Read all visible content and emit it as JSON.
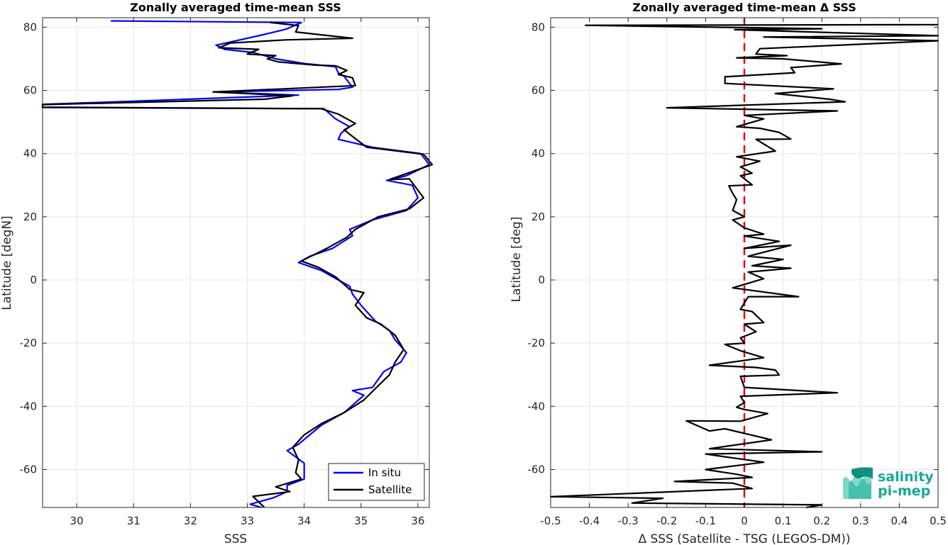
{
  "chart_data": [
    {
      "type": "line",
      "title": "Zonally averaged time-mean SSS",
      "xlabel": "SSS",
      "ylabel": "Latitude [degN]",
      "xlim": [
        29.4,
        36.2
      ],
      "ylim": [
        -72,
        83
      ],
      "xticks": [
        30,
        31,
        32,
        33,
        34,
        35,
        36
      ],
      "yticks": [
        -60,
        -40,
        -20,
        0,
        20,
        40,
        60,
        80
      ],
      "grid": true,
      "legend": "bottom-right",
      "series": [
        {
          "name": "In situ",
          "color": "#0000ff",
          "points": [
            [
              30.6,
              82
            ],
            [
              33.95,
              81.5
            ],
            [
              33.7,
              79.5
            ],
            [
              33.6,
              79
            ],
            [
              33.25,
              77.5
            ],
            [
              32.45,
              74.3
            ],
            [
              32.6,
              73
            ],
            [
              33.1,
              72
            ],
            [
              33.3,
              71
            ],
            [
              33.5,
              70
            ],
            [
              34.0,
              68.5
            ],
            [
              34.55,
              67.5
            ],
            [
              34.6,
              65.5
            ],
            [
              34.7,
              64.5
            ],
            [
              34.85,
              61
            ],
            [
              34.6,
              60.3
            ],
            [
              32.4,
              59.5
            ],
            [
              33.9,
              58.5
            ],
            [
              30.9,
              56.5
            ],
            [
              29.4,
              55.6
            ],
            [
              29.4,
              54.6
            ],
            [
              34.35,
              54.2
            ],
            [
              34.55,
              51
            ],
            [
              34.8,
              48.5
            ],
            [
              34.65,
              46.5
            ],
            [
              34.6,
              44.5
            ],
            [
              35.2,
              42
            ],
            [
              36.05,
              40
            ],
            [
              36.2,
              36.5
            ],
            [
              35.8,
              33
            ],
            [
              35.45,
              31.5
            ],
            [
              35.9,
              30
            ],
            [
              36.0,
              26
            ],
            [
              35.8,
              22
            ],
            [
              35.2,
              19
            ],
            [
              34.8,
              16
            ],
            [
              34.85,
              14
            ],
            [
              34.5,
              10
            ],
            [
              34.1,
              7.5
            ],
            [
              33.9,
              5.5
            ],
            [
              34.3,
              3
            ],
            [
              34.5,
              1
            ],
            [
              34.8,
              -2
            ],
            [
              34.85,
              -4.5
            ],
            [
              35.0,
              -8
            ],
            [
              35.25,
              -13
            ],
            [
              35.5,
              -16
            ],
            [
              35.6,
              -19
            ],
            [
              35.8,
              -23
            ],
            [
              35.7,
              -26
            ],
            [
              35.4,
              -29
            ],
            [
              35.2,
              -34
            ],
            [
              34.85,
              -35
            ],
            [
              35.05,
              -36.5
            ],
            [
              34.7,
              -42
            ],
            [
              34.3,
              -46
            ],
            [
              33.9,
              -52
            ],
            [
              33.7,
              -54
            ],
            [
              34.0,
              -58
            ],
            [
              34.0,
              -63
            ],
            [
              33.7,
              -65
            ],
            [
              33.7,
              -67
            ],
            [
              33.45,
              -69
            ],
            [
              33.05,
              -71
            ],
            [
              33.25,
              -72
            ]
          ]
        },
        {
          "name": "Satellite",
          "color": "#000000",
          "points": [
            [
              33.4,
              81.5
            ],
            [
              33.9,
              80.5
            ],
            [
              33.85,
              78.5
            ],
            [
              34.85,
              76.5
            ],
            [
              33.7,
              76
            ],
            [
              32.7,
              75
            ],
            [
              32.5,
              73.5
            ],
            [
              33.2,
              73
            ],
            [
              33.0,
              71.5
            ],
            [
              33.5,
              71
            ],
            [
              33.35,
              70
            ],
            [
              33.55,
              69
            ],
            [
              34.2,
              68
            ],
            [
              34.55,
              67.8
            ],
            [
              34.75,
              66.3
            ],
            [
              34.6,
              65
            ],
            [
              34.85,
              64
            ],
            [
              34.9,
              61.5
            ],
            [
              32.4,
              59.5
            ],
            [
              33.8,
              58.3
            ],
            [
              33.3,
              57.2
            ],
            [
              29.4,
              55.5
            ],
            [
              29.4,
              54.7
            ],
            [
              34.3,
              54.2
            ],
            [
              34.6,
              52.5
            ],
            [
              34.9,
              49.5
            ],
            [
              34.7,
              47.5
            ],
            [
              35.1,
              42
            ],
            [
              36.1,
              39.8
            ],
            [
              36.25,
              36.5
            ],
            [
              35.5,
              31.8
            ],
            [
              35.85,
              32
            ],
            [
              36.1,
              26
            ],
            [
              35.85,
              22.5
            ],
            [
              35.3,
              20
            ],
            [
              34.9,
              16
            ],
            [
              34.75,
              13.5
            ],
            [
              34.4,
              10
            ],
            [
              33.95,
              6
            ],
            [
              34.25,
              4
            ],
            [
              34.55,
              1
            ],
            [
              34.8,
              -3
            ],
            [
              35.05,
              -4
            ],
            [
              34.9,
              -8
            ],
            [
              35.1,
              -12
            ],
            [
              35.35,
              -14
            ],
            [
              35.6,
              -17.5
            ],
            [
              35.75,
              -22
            ],
            [
              35.6,
              -26
            ],
            [
              35.5,
              -30
            ],
            [
              35.3,
              -33.5
            ],
            [
              35.05,
              -38
            ],
            [
              34.7,
              -42
            ],
            [
              34.3,
              -45.5
            ],
            [
              34.0,
              -49
            ],
            [
              33.8,
              -53
            ],
            [
              33.9,
              -57
            ],
            [
              33.85,
              -61
            ],
            [
              33.95,
              -63
            ],
            [
              33.5,
              -65.5
            ],
            [
              33.75,
              -67
            ],
            [
              33.1,
              -68.5
            ],
            [
              33.3,
              -72
            ]
          ]
        }
      ]
    },
    {
      "type": "line",
      "title": "Zonally averaged time-mean Δ SSS",
      "xlabel": "Δ SSS (Satellite - TSG (LEGOS-DM))",
      "ylabel": "Latitude [deg]",
      "xlim": [
        -0.5,
        0.5
      ],
      "ylim": [
        -72,
        83
      ],
      "xticks": [
        -0.5,
        -0.4,
        -0.3,
        -0.2,
        -0.1,
        0,
        0.1,
        0.2,
        0.3,
        0.4,
        0.5
      ],
      "yticks": [
        -60,
        -40,
        -20,
        0,
        20,
        40,
        60,
        80
      ],
      "grid": true,
      "reference_line": {
        "x": 0,
        "color": "#e00000",
        "style": "dashed"
      },
      "series": [
        {
          "name": "",
          "color": "#000000",
          "points": [
            [
              0.5,
              80.8
            ],
            [
              -0.41,
              80.6
            ],
            [
              0.2,
              79.5
            ],
            [
              -0.025,
              79.2
            ],
            [
              0.5,
              77.3
            ],
            [
              0.05,
              76.9
            ],
            [
              0.5,
              75.7
            ],
            [
              0.04,
              73.2
            ],
            [
              0.03,
              71.5
            ],
            [
              0.11,
              71
            ],
            [
              -0.02,
              70.3
            ],
            [
              0.1,
              70
            ],
            [
              0.25,
              68.4
            ],
            [
              0.12,
              67.2
            ],
            [
              0.13,
              65.6
            ],
            [
              -0.05,
              64.3
            ],
            [
              -0.05,
              62.2
            ],
            [
              0.23,
              60.5
            ],
            [
              0.08,
              59
            ],
            [
              0.22,
              57.2
            ],
            [
              0.26,
              56.4
            ],
            [
              -0.2,
              54.5
            ],
            [
              0.24,
              53.5
            ],
            [
              0.0,
              52.1
            ],
            [
              0.05,
              51
            ],
            [
              -0.02,
              48.5
            ],
            [
              0.04,
              48
            ],
            [
              0.09,
              46.7
            ],
            [
              0.12,
              44.6
            ],
            [
              0.03,
              44.5
            ],
            [
              0.08,
              40.8
            ],
            [
              -0.02,
              39
            ],
            [
              0.04,
              37.6
            ],
            [
              -0.01,
              35.8
            ],
            [
              0.02,
              33.8
            ],
            [
              -0.01,
              33
            ],
            [
              0.02,
              30.1
            ],
            [
              -0.04,
              29.8
            ],
            [
              -0.03,
              27.4
            ],
            [
              -0.02,
              25.4
            ],
            [
              -0.03,
              22
            ],
            [
              0.0,
              20
            ],
            [
              -0.03,
              19
            ],
            [
              0.0,
              16.5
            ],
            [
              0.05,
              14.5
            ],
            [
              0.0,
              13.9
            ],
            [
              0.09,
              12.2
            ],
            [
              0.0,
              10
            ],
            [
              0.12,
              11
            ],
            [
              0.01,
              7.5
            ],
            [
              0.1,
              6.5
            ],
            [
              0.02,
              4.5
            ],
            [
              0.12,
              3.7
            ],
            [
              0.01,
              2.5
            ],
            [
              0.05,
              0.4
            ],
            [
              -0.03,
              -2.5
            ],
            [
              0.14,
              -5.3
            ],
            [
              0.01,
              -5.3
            ],
            [
              -0.01,
              -9.3
            ],
            [
              0.02,
              -10
            ],
            [
              0.05,
              -13.5
            ],
            [
              0.0,
              -14
            ],
            [
              0.03,
              -16.4
            ],
            [
              -0.01,
              -18.3
            ],
            [
              0.0,
              -20
            ],
            [
              -0.05,
              -20.4
            ],
            [
              -0.01,
              -22.4
            ],
            [
              0.05,
              -24.6
            ],
            [
              -0.09,
              -27
            ],
            [
              0.03,
              -27.7
            ],
            [
              0.08,
              -28.5
            ],
            [
              0.09,
              -30.1
            ],
            [
              -0.01,
              -30.5
            ],
            [
              0.0,
              -34
            ],
            [
              0.24,
              -35.7
            ],
            [
              -0.01,
              -36.8
            ],
            [
              0.0,
              -38.8
            ],
            [
              -0.02,
              -40.3
            ],
            [
              0.0,
              -41
            ],
            [
              0.06,
              -42.3
            ],
            [
              -0.01,
              -44.7
            ],
            [
              -0.15,
              -44.6
            ],
            [
              -0.09,
              -47.8
            ],
            [
              -0.05,
              -47.1
            ],
            [
              0.07,
              -50.6
            ],
            [
              -0.09,
              -53.4
            ],
            [
              0.2,
              -54.4
            ],
            [
              -0.1,
              -55.1
            ],
            [
              0.05,
              -57.7
            ],
            [
              -0.1,
              -60
            ],
            [
              -0.02,
              -61.5
            ],
            [
              0.02,
              -62.5
            ],
            [
              -0.18,
              -63.8
            ],
            [
              -0.03,
              -64.3
            ],
            [
              0.02,
              -66
            ],
            [
              -0.5,
              -68.6
            ],
            [
              -0.21,
              -69.1
            ],
            [
              -0.29,
              -70.6
            ],
            [
              0.2,
              -71.2
            ],
            [
              0.16,
              -72
            ]
          ]
        }
      ]
    }
  ],
  "legend": {
    "items": [
      {
        "label": "In situ",
        "color": "#0000ff"
      },
      {
        "label": "Satellite",
        "color": "#000000"
      }
    ]
  },
  "logo": {
    "line1": "salinity",
    "line2": "pi-mep",
    "color": "#18a896"
  }
}
